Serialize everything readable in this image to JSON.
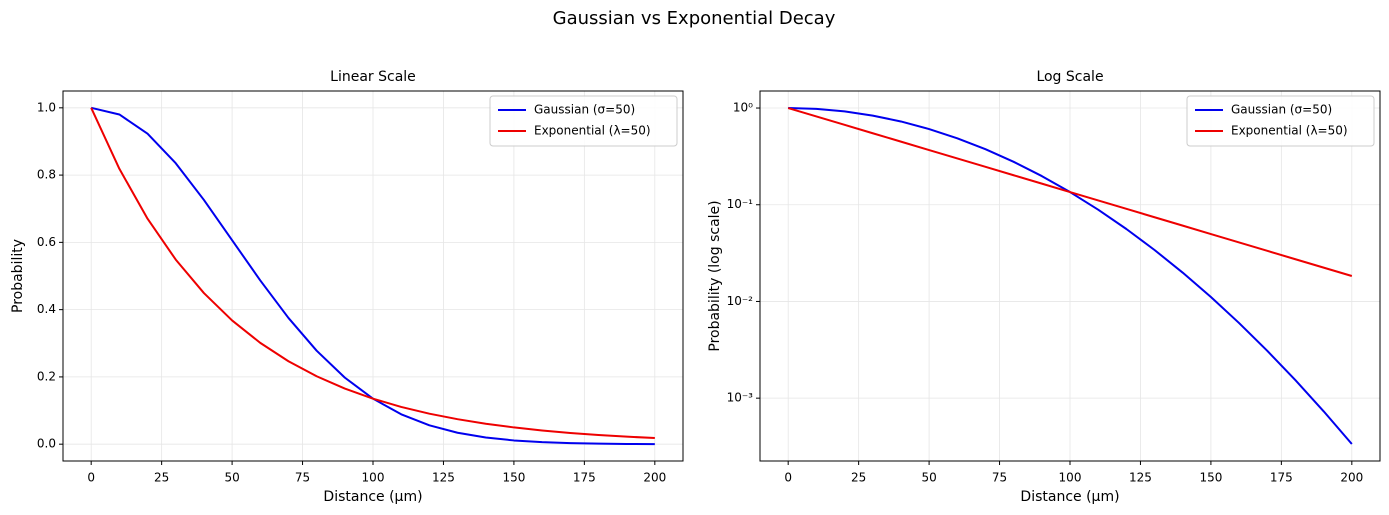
{
  "title": "Gaussian vs Exponential Decay",
  "chart_data": [
    {
      "type": "line",
      "title": "Linear Scale",
      "xlabel": "Distance (μm)",
      "ylabel": "Probability",
      "x": [
        0,
        10,
        20,
        30,
        40,
        50,
        60,
        70,
        80,
        90,
        100,
        110,
        120,
        130,
        140,
        150,
        160,
        170,
        180,
        190,
        200
      ],
      "series": [
        {
          "name": "Gaussian (σ=50)",
          "color": "#0000ee",
          "values": [
            1,
            0.9802,
            0.9231,
            0.8353,
            0.7261,
            0.6065,
            0.4868,
            0.3753,
            0.278,
            0.1979,
            0.1353,
            0.08892,
            0.05613,
            0.03405,
            0.01984,
            0.01111,
            0.005976,
            0.003089,
            0.001534,
            0.0007318,
            0.0003355
          ]
        },
        {
          "name": "Exponential (λ=50)",
          "color": "#ee0000",
          "values": [
            1,
            0.8187,
            0.6703,
            0.5488,
            0.4493,
            0.3679,
            0.3012,
            0.2466,
            0.2019,
            0.1653,
            0.1353,
            0.1108,
            0.09072,
            0.07427,
            0.06081,
            0.04979,
            0.04076,
            0.03337,
            0.02732,
            0.02237,
            0.01832
          ]
        }
      ],
      "xlim": [
        -10,
        210
      ],
      "xticks": [
        0,
        25,
        50,
        75,
        100,
        125,
        150,
        175,
        200
      ],
      "ylim": [
        -0.05,
        1.05
      ],
      "yticks": [
        {
          "value": 0,
          "label": "0.0"
        },
        0.2,
        0.4,
        0.6,
        0.8,
        {
          "value": 1,
          "label": "1.0"
        }
      ],
      "yscale": "linear",
      "grid": true,
      "legend": "upper right"
    },
    {
      "type": "line",
      "title": "Log Scale",
      "xlabel": "Distance (μm)",
      "ylabel": "Probability (log scale)",
      "x": [
        0,
        10,
        20,
        30,
        40,
        50,
        60,
        70,
        80,
        90,
        100,
        110,
        120,
        130,
        140,
        150,
        160,
        170,
        180,
        190,
        200
      ],
      "series": [
        {
          "name": "Gaussian (σ=50)",
          "color": "#0000ee",
          "values": [
            1,
            0.9802,
            0.9231,
            0.8353,
            0.7261,
            0.6065,
            0.4868,
            0.3753,
            0.278,
            0.1979,
            0.1353,
            0.08892,
            0.05613,
            0.03405,
            0.01984,
            0.01111,
            0.005976,
            0.003089,
            0.001534,
            0.0007318,
            0.0003355
          ]
        },
        {
          "name": "Exponential (λ=50)",
          "color": "#ee0000",
          "values": [
            1,
            0.8187,
            0.6703,
            0.5488,
            0.4493,
            0.3679,
            0.3012,
            0.2466,
            0.2019,
            0.1653,
            0.1353,
            0.1108,
            0.09072,
            0.07427,
            0.06081,
            0.04979,
            0.04076,
            0.03337,
            0.02732,
            0.02237,
            0.01832
          ]
        }
      ],
      "xlim": [
        -10,
        210
      ],
      "xticks": [
        0,
        25,
        50,
        75,
        100,
        125,
        150,
        175,
        200
      ],
      "ylim": [
        0.000224,
        1.5
      ],
      "yticks": [
        {
          "value": 0.001,
          "label": "10⁻³"
        },
        {
          "value": 0.01,
          "label": "10⁻²"
        },
        {
          "value": 0.1,
          "label": "10⁻¹"
        },
        {
          "value": 1,
          "label": "10⁰"
        }
      ],
      "yscale": "log",
      "grid": true,
      "legend": "upper right"
    }
  ]
}
